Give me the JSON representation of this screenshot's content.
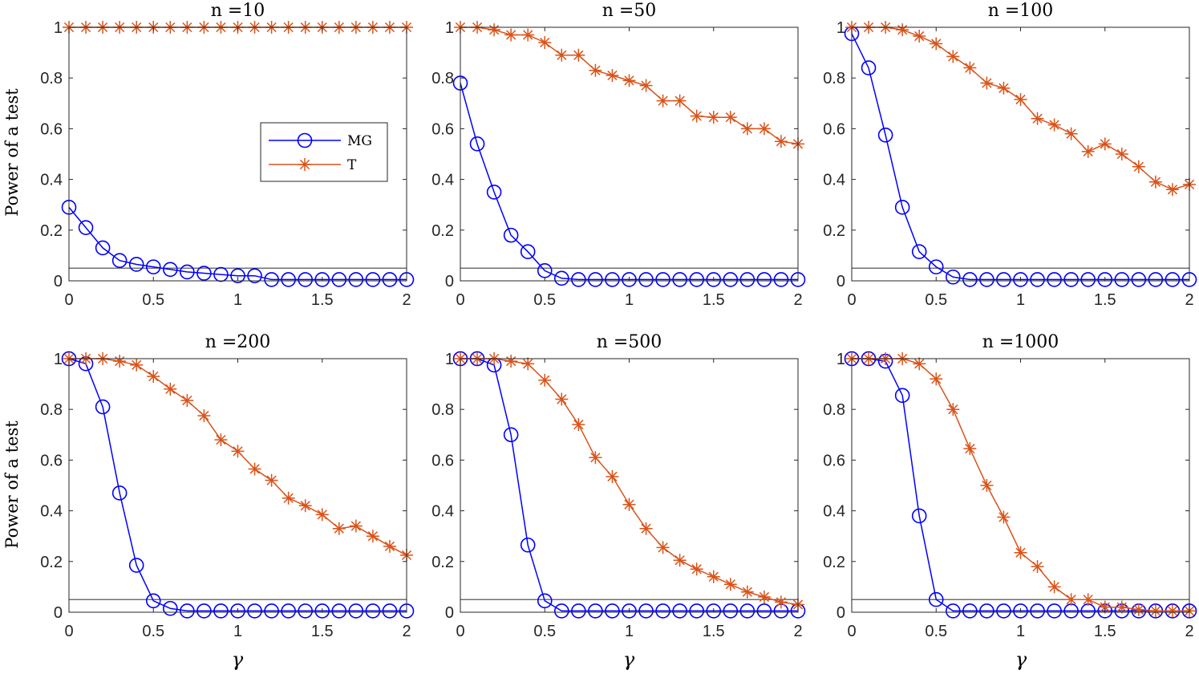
{
  "figure": {
    "ylabel": "Power of a test",
    "xlabel": "γ",
    "legend": [
      "MG",
      "T"
    ],
    "colors": {
      "MG": "#0000ff",
      "T": "#d95319",
      "alpha_line": "#404040",
      "axes": "#262626"
    },
    "legend_placement": "middle-right of first panel"
  },
  "chart_data": [
    {
      "type": "line",
      "title": "n =10",
      "xlim": [
        0,
        2
      ],
      "ylim": [
        0,
        1
      ],
      "xticks": [
        "0",
        "0.5",
        "1",
        "1.5",
        "2"
      ],
      "yticks": [
        "0",
        "0.2",
        "0.4",
        "0.6",
        "0.8",
        "1"
      ],
      "x": [
        0,
        0.1,
        0.2,
        0.3,
        0.4,
        0.5,
        0.6,
        0.7,
        0.8,
        0.9,
        1.0,
        1.1,
        1.2,
        1.3,
        1.4,
        1.5,
        1.6,
        1.7,
        1.8,
        1.9,
        2.0
      ],
      "hline": 0.05,
      "series": [
        {
          "name": "MG",
          "marker": "circle",
          "values": [
            0.29,
            0.21,
            0.13,
            0.08,
            0.065,
            0.055,
            0.045,
            0.035,
            0.03,
            0.025,
            0.02,
            0.02,
            0.005,
            0.005,
            0.005,
            0.005,
            0.005,
            0.005,
            0.005,
            0.005,
            0.005
          ]
        },
        {
          "name": "T",
          "marker": "asterisk",
          "values": [
            1,
            1,
            1,
            1,
            1,
            1,
            1,
            1,
            1,
            1,
            1,
            1,
            1,
            1,
            1,
            1,
            1,
            1,
            1,
            1,
            1
          ]
        }
      ]
    },
    {
      "type": "line",
      "title": "n =50",
      "xlim": [
        0,
        2
      ],
      "ylim": [
        0,
        1
      ],
      "xticks": [
        "0",
        "0.5",
        "1",
        "1.5",
        "2"
      ],
      "yticks": [
        "0",
        "0.2",
        "0.4",
        "0.6",
        "0.8",
        "1"
      ],
      "x": [
        0,
        0.1,
        0.2,
        0.3,
        0.4,
        0.5,
        0.6,
        0.7,
        0.8,
        0.9,
        1.0,
        1.1,
        1.2,
        1.3,
        1.4,
        1.5,
        1.6,
        1.7,
        1.8,
        1.9,
        2.0
      ],
      "hline": 0.05,
      "series": [
        {
          "name": "MG",
          "marker": "circle",
          "values": [
            0.78,
            0.54,
            0.35,
            0.18,
            0.115,
            0.04,
            0.01,
            0.005,
            0.005,
            0.005,
            0.005,
            0.005,
            0.005,
            0.005,
            0.005,
            0.005,
            0.005,
            0.005,
            0.005,
            0.005,
            0.005
          ]
        },
        {
          "name": "T",
          "marker": "asterisk",
          "values": [
            1,
            1,
            0.99,
            0.97,
            0.97,
            0.94,
            0.89,
            0.89,
            0.83,
            0.81,
            0.79,
            0.77,
            0.71,
            0.71,
            0.65,
            0.645,
            0.645,
            0.6,
            0.6,
            0.55,
            0.54
          ]
        }
      ]
    },
    {
      "type": "line",
      "title": "n =100",
      "xlim": [
        0,
        2
      ],
      "ylim": [
        0,
        1
      ],
      "xticks": [
        "0",
        "0.5",
        "1",
        "1.5",
        "2"
      ],
      "yticks": [
        "0",
        "0.2",
        "0.4",
        "0.6",
        "0.8",
        "1"
      ],
      "x": [
        0,
        0.1,
        0.2,
        0.3,
        0.4,
        0.5,
        0.6,
        0.7,
        0.8,
        0.9,
        1.0,
        1.1,
        1.2,
        1.3,
        1.4,
        1.5,
        1.6,
        1.7,
        1.8,
        1.9,
        2.0
      ],
      "hline": 0.05,
      "series": [
        {
          "name": "MG",
          "marker": "circle",
          "values": [
            0.975,
            0.84,
            0.575,
            0.29,
            0.115,
            0.055,
            0.015,
            0.005,
            0.005,
            0.005,
            0.005,
            0.005,
            0.005,
            0.005,
            0.005,
            0.005,
            0.005,
            0.005,
            0.005,
            0.005,
            0.005
          ]
        },
        {
          "name": "T",
          "marker": "asterisk",
          "values": [
            1,
            1,
            1,
            0.99,
            0.965,
            0.935,
            0.885,
            0.84,
            0.78,
            0.76,
            0.715,
            0.64,
            0.615,
            0.58,
            0.51,
            0.54,
            0.5,
            0.45,
            0.39,
            0.36,
            0.38
          ]
        }
      ]
    },
    {
      "type": "line",
      "title": "n =200",
      "xlim": [
        0,
        2
      ],
      "ylim": [
        0,
        1
      ],
      "xticks": [
        "0",
        "0.5",
        "1",
        "1.5",
        "2"
      ],
      "yticks": [
        "0",
        "0.2",
        "0.4",
        "0.6",
        "0.8",
        "1"
      ],
      "x": [
        0,
        0.1,
        0.2,
        0.3,
        0.4,
        0.5,
        0.6,
        0.7,
        0.8,
        0.9,
        1.0,
        1.1,
        1.2,
        1.3,
        1.4,
        1.5,
        1.6,
        1.7,
        1.8,
        1.9,
        2.0
      ],
      "hline": 0.05,
      "series": [
        {
          "name": "MG",
          "marker": "circle",
          "values": [
            1,
            0.98,
            0.81,
            0.47,
            0.185,
            0.045,
            0.015,
            0.005,
            0.005,
            0.005,
            0.005,
            0.005,
            0.005,
            0.005,
            0.005,
            0.005,
            0.005,
            0.005,
            0.005,
            0.005,
            0.005
          ]
        },
        {
          "name": "T",
          "marker": "asterisk",
          "values": [
            1,
            1,
            1,
            0.99,
            0.975,
            0.93,
            0.88,
            0.835,
            0.775,
            0.68,
            0.635,
            0.565,
            0.52,
            0.45,
            0.42,
            0.385,
            0.33,
            0.34,
            0.3,
            0.26,
            0.225
          ]
        }
      ]
    },
    {
      "type": "line",
      "title": "n =500",
      "xlim": [
        0,
        2
      ],
      "ylim": [
        0,
        1
      ],
      "xticks": [
        "0",
        "0.5",
        "1",
        "1.5",
        "2"
      ],
      "yticks": [
        "0",
        "0.2",
        "0.4",
        "0.6",
        "0.8",
        "1"
      ],
      "x": [
        0,
        0.1,
        0.2,
        0.3,
        0.4,
        0.5,
        0.6,
        0.7,
        0.8,
        0.9,
        1.0,
        1.1,
        1.2,
        1.3,
        1.4,
        1.5,
        1.6,
        1.7,
        1.8,
        1.9,
        2.0
      ],
      "hline": 0.05,
      "series": [
        {
          "name": "MG",
          "marker": "circle",
          "values": [
            1,
            1,
            0.975,
            0.7,
            0.265,
            0.045,
            0.005,
            0.005,
            0.005,
            0.005,
            0.005,
            0.005,
            0.005,
            0.005,
            0.005,
            0.005,
            0.005,
            0.005,
            0.005,
            0.005,
            0.005
          ]
        },
        {
          "name": "T",
          "marker": "asterisk",
          "values": [
            1,
            1,
            1,
            0.99,
            0.98,
            0.915,
            0.84,
            0.74,
            0.61,
            0.535,
            0.425,
            0.33,
            0.255,
            0.205,
            0.17,
            0.14,
            0.11,
            0.08,
            0.06,
            0.04,
            0.03
          ]
        }
      ]
    },
    {
      "type": "line",
      "title": "n =1000",
      "xlim": [
        0,
        2
      ],
      "ylim": [
        0,
        1
      ],
      "xticks": [
        "0",
        "0.5",
        "1",
        "1.5",
        "2"
      ],
      "yticks": [
        "0",
        "0.2",
        "0.4",
        "0.6",
        "0.8",
        "1"
      ],
      "x": [
        0,
        0.1,
        0.2,
        0.3,
        0.4,
        0.5,
        0.6,
        0.7,
        0.8,
        0.9,
        1.0,
        1.1,
        1.2,
        1.3,
        1.4,
        1.5,
        1.6,
        1.7,
        1.8,
        1.9,
        2.0
      ],
      "hline": 0.05,
      "series": [
        {
          "name": "MG",
          "marker": "circle",
          "values": [
            1,
            1,
            0.99,
            0.855,
            0.38,
            0.05,
            0.005,
            0.005,
            0.005,
            0.005,
            0.005,
            0.005,
            0.005,
            0.005,
            0.005,
            0.005,
            0.005,
            0.005,
            0.005,
            0.005,
            0.005
          ]
        },
        {
          "name": "T",
          "marker": "asterisk",
          "values": [
            1,
            1,
            1,
            1,
            0.98,
            0.92,
            0.8,
            0.645,
            0.5,
            0.375,
            0.235,
            0.18,
            0.1,
            0.05,
            0.05,
            0.02,
            0.02,
            0.01,
            0.005,
            0.005,
            0.005
          ]
        }
      ]
    }
  ]
}
